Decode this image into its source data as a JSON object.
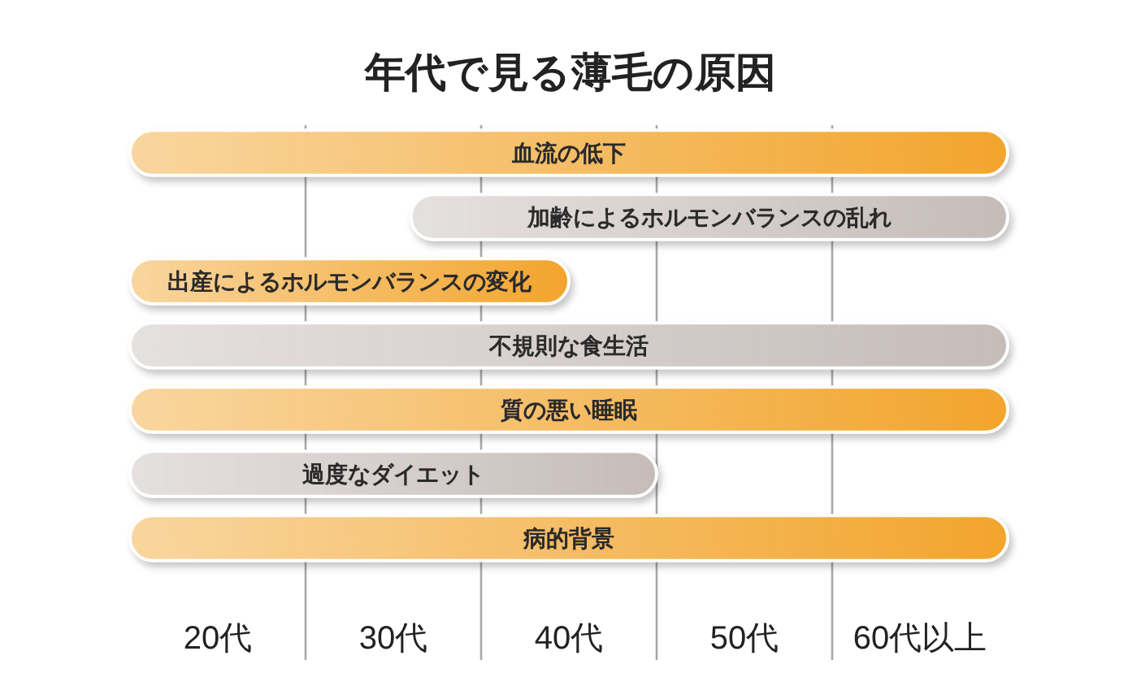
{
  "chart_data": {
    "type": "bar",
    "title": "年代で見る薄毛の原因",
    "orientation": "horizontal",
    "categories": [
      "血流の低下",
      "加齢によるホルモンバランスの乱れ",
      "出産によるホルモンバランスの変化",
      "不規則な食生活",
      "質の悪い睡眠",
      "過度なダイエット",
      "病的背景"
    ],
    "base": [
      15,
      31,
      15,
      15,
      15,
      15,
      15
    ],
    "values": [
      50,
      34,
      25,
      50,
      50,
      30,
      50
    ],
    "colors": [
      "#f3a52c",
      "#c6bdba",
      "#f3a52c",
      "#c6bdba",
      "#f3a52c",
      "#c6bdba",
      "#f3a52c"
    ],
    "xlim": [
      15,
      65
    ],
    "xticks": [
      {
        "value": 20,
        "label": "20代"
      },
      {
        "value": 25,
        "label": null
      },
      {
        "value": 30,
        "label": "30代"
      },
      {
        "value": 35,
        "label": null
      },
      {
        "value": 40,
        "label": "40代"
      },
      {
        "value": 45,
        "label": null
      },
      {
        "value": 50,
        "label": "50代"
      },
      {
        "value": 55,
        "label": null
      },
      {
        "value": 60,
        "label": "60代以上"
      }
    ],
    "grid": "x"
  }
}
